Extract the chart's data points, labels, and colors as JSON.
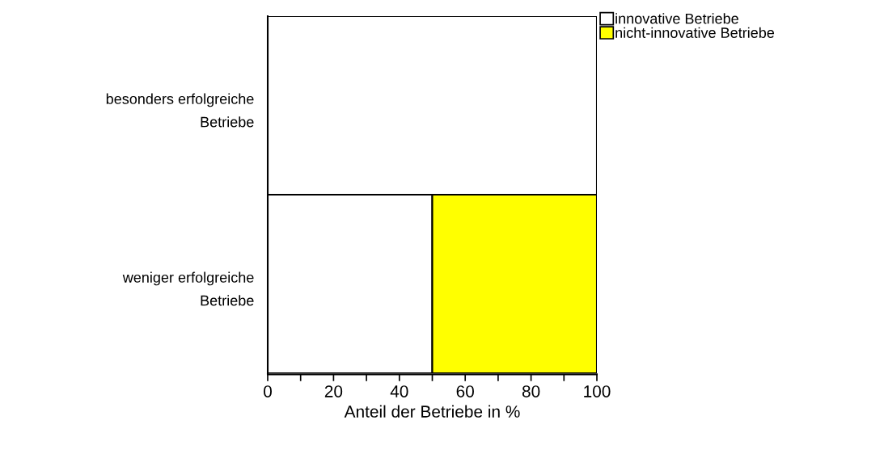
{
  "chart_data": {
    "type": "bar",
    "orientation": "horizontal",
    "stacked": true,
    "categories": [
      "besonders erfolgreiche\nBetriebe",
      "weniger erfolgreiche\nBetriebe"
    ],
    "series": [
      {
        "name": "innovative Betriebe",
        "color": "#ffffff",
        "values": [
          100,
          50
        ]
      },
      {
        "name": "nicht-innovative Betriebe",
        "color": "#ffff00",
        "values": [
          0,
          50
        ]
      }
    ],
    "xlabel": "Anteil der Betriebe in %",
    "xlim": [
      0,
      100
    ],
    "xticks": [
      0,
      {
        "value": 10,
        "label": null
      },
      20,
      {
        "value": 30,
        "label": null
      },
      40,
      {
        "value": 50,
        "label": null
      },
      60,
      {
        "value": 70,
        "label": null
      },
      80,
      {
        "value": 90,
        "label": null
      },
      100
    ],
    "grid": false,
    "legend": "top right"
  }
}
